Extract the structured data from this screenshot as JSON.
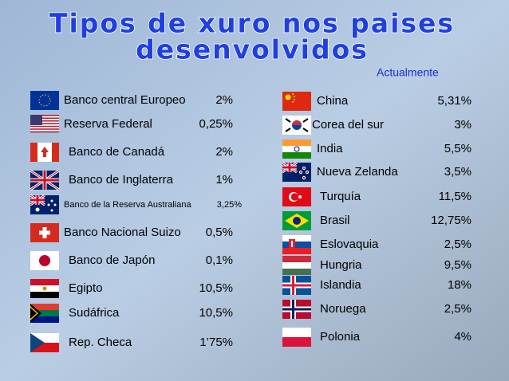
{
  "title": [
    "Tipos de xuro nos paises",
    "desenvolvidos"
  ],
  "subtitle": "Actualmente",
  "left": [
    {
      "name": "Banco central Europeo",
      "rate": "2%"
    },
    {
      "name": "Reserva Federal",
      "rate": "0,25%"
    },
    {
      "name": "Banco de Canadá",
      "rate": "2%"
    },
    {
      "name": "Banco de Inglaterra",
      "rate": "1%"
    },
    {
      "name": "Banco de la Reserva Australiana",
      "rate": "3,25%"
    },
    {
      "name": "Banco Nacional Suizo",
      "rate": "0,5%"
    },
    {
      "name": "Banco de Japón",
      "rate": "0,1%"
    },
    {
      "name": "Egipto",
      "rate": "10,5%"
    },
    {
      "name": "Sudáfrica",
      "rate": "10,5%"
    },
    {
      "name": "Rep. Checa",
      "rate": "1’75%"
    }
  ],
  "right": [
    {
      "name": "China",
      "rate": "5,31%"
    },
    {
      "name": "Corea del sur",
      "rate": "3%"
    },
    {
      "name": "India",
      "rate": "5,5%"
    },
    {
      "name": "Nueva Zelanda",
      "rate": "3,5%"
    },
    {
      "name": "Turquía",
      "rate": "11,5%"
    },
    {
      "name": "Brasil",
      "rate": "12,75%"
    },
    {
      "name": "Eslovaquia",
      "rate": "2,5%"
    },
    {
      "name": "Hungria",
      "rate": "9,5%"
    },
    {
      "name": "Islandia",
      "rate": "18%"
    },
    {
      "name": "Noruega",
      "rate": "2,5%"
    },
    {
      "name": "Polonia",
      "rate": "4%"
    }
  ]
}
